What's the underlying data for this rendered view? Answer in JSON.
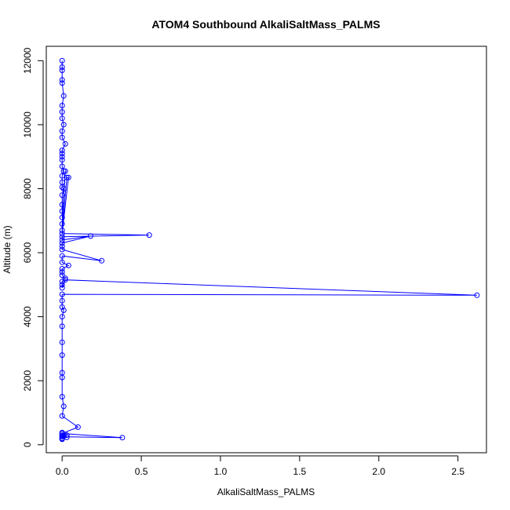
{
  "chart_data": {
    "type": "line",
    "title": "ATOM4 Southbound AlkaliSaltMass_PALMS",
    "xlabel": "AlkaliSaltMass_PALMS",
    "ylabel": "Altitude (m)",
    "xlim": [
      -0.1,
      2.68
    ],
    "ylim": [
      -250,
      12450
    ],
    "x_ticks": [
      0,
      0.5,
      1,
      1.5,
      2,
      2.5
    ],
    "x_tick_labels": [
      "0.0",
      "0.5",
      "1.0",
      "1.5",
      "2.0",
      "2.5"
    ],
    "y_ticks": [
      0,
      2000,
      4000,
      6000,
      8000,
      10000,
      12000
    ],
    "y_tick_labels": [
      "0",
      "2000",
      "4000",
      "6000",
      "8000",
      "10000",
      "12000"
    ],
    "grid": false,
    "marker": "open-circle",
    "color": "#0000ff",
    "series": [
      {
        "x": [
          0.0,
          0.0,
          0.0,
          0.0,
          0.0,
          0.01,
          0.0,
          0.0,
          0.0,
          0.01,
          0.0,
          0.0,
          0.02,
          0.0,
          0.0,
          0.0,
          0.0,
          0.0,
          0.01,
          0.0,
          0.0,
          0.0,
          0.01,
          0.0,
          0.0,
          0.0,
          0.0,
          0.02,
          0.0,
          0.0,
          0.03,
          0.04,
          0.0,
          0.55,
          0.0,
          0.0,
          0.18,
          0.0,
          0.0,
          0.0,
          0.25,
          0.0,
          0.0,
          0.04,
          0.0,
          0.0,
          0.0,
          0.02,
          0.0,
          0.0,
          0.0,
          0.02,
          2.62,
          0.0,
          0.0,
          0.0,
          0.01,
          0.0,
          0.0,
          0.0,
          0.0,
          0.0,
          0.0,
          0.0,
          0.01,
          0.0,
          0.1,
          0.0,
          0.03,
          0.0,
          0.38,
          0.0,
          0.0,
          0.01,
          0.03,
          0.0,
          0.0,
          0.0,
          0.0,
          0.0
        ],
        "y": [
          12000,
          11800,
          11700,
          11400,
          11300,
          10900,
          10600,
          10400,
          10200,
          10000,
          9800,
          9600,
          9400,
          9200,
          9100,
          9000,
          8900,
          8700,
          8550,
          8400,
          8200,
          8050,
          8000,
          7800,
          7500,
          7300,
          7100,
          8550,
          6900,
          6700,
          8350,
          8350,
          6600,
          6550,
          6500,
          6400,
          6520,
          6300,
          6200,
          6100,
          5750,
          5900,
          5700,
          5600,
          5500,
          5400,
          5300,
          5200,
          5100,
          5000,
          4900,
          5150,
          4670,
          4700,
          4500,
          4300,
          4200,
          4000,
          3700,
          3200,
          2800,
          2250,
          2100,
          1500,
          1200,
          900,
          550,
          350,
          300,
          250,
          220,
          350,
          380,
          280,
          230,
          200,
          170,
          260,
          300,
          190
        ]
      }
    ]
  }
}
